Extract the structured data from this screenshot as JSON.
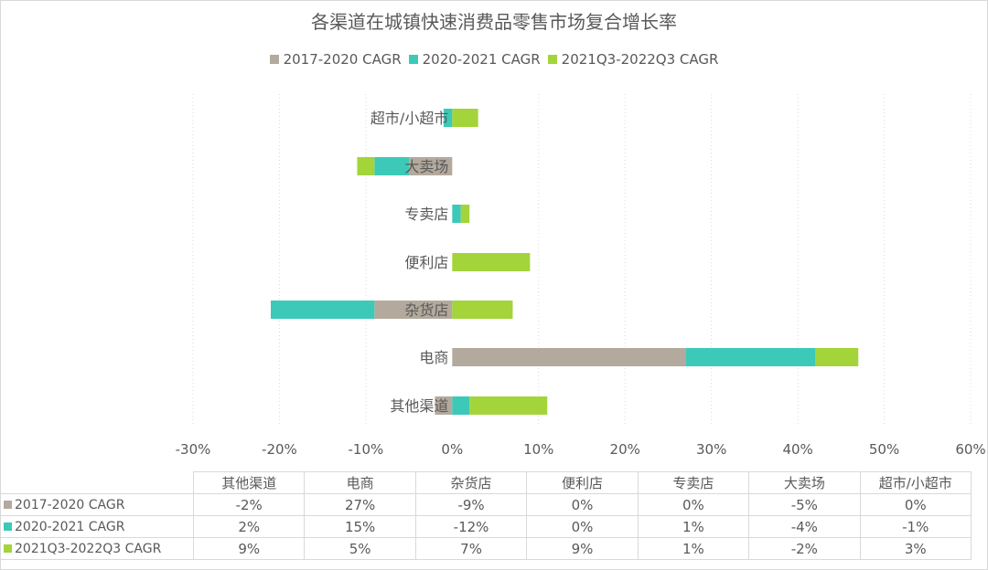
{
  "chart_data": {
    "type": "bar",
    "orientation": "horizontal",
    "stacked": true,
    "title": "各渠道在城镇快速消费品零售市场复合增长率",
    "categories": [
      "其他渠道",
      "电商",
      "杂货店",
      "便利店",
      "专卖店",
      "大卖场",
      "超市/小超市"
    ],
    "series": [
      {
        "name": "2017-2020 CAGR",
        "color": "#b3a99d",
        "values": [
          -2,
          27,
          -9,
          0,
          0,
          -5,
          0
        ],
        "labels": [
          "-2%",
          "27%",
          "-9%",
          "0%",
          "0%",
          "-5%",
          "0%"
        ]
      },
      {
        "name": "2020-2021 CAGR",
        "color": "#3cc9b8",
        "values": [
          2,
          15,
          -12,
          0,
          1,
          -4,
          -1
        ],
        "labels": [
          "2%",
          "15%",
          "-12%",
          "0%",
          "1%",
          "-4%",
          "-1%"
        ]
      },
      {
        "name": "2021Q3-2022Q3 CAGR",
        "color": "#a3d43a",
        "values": [
          9,
          5,
          7,
          9,
          1,
          -2,
          3
        ],
        "labels": [
          "9%",
          "5%",
          "7%",
          "9%",
          "1%",
          "-2%",
          "3%"
        ]
      }
    ],
    "xlim": [
      -30,
      60
    ],
    "xticks": [
      "-30%",
      "-20%",
      "-10%",
      "0%",
      "10%",
      "20%",
      "30%",
      "40%",
      "50%",
      "60%"
    ],
    "legend": "top",
    "grid": "vertical dotted",
    "data_table": true
  }
}
